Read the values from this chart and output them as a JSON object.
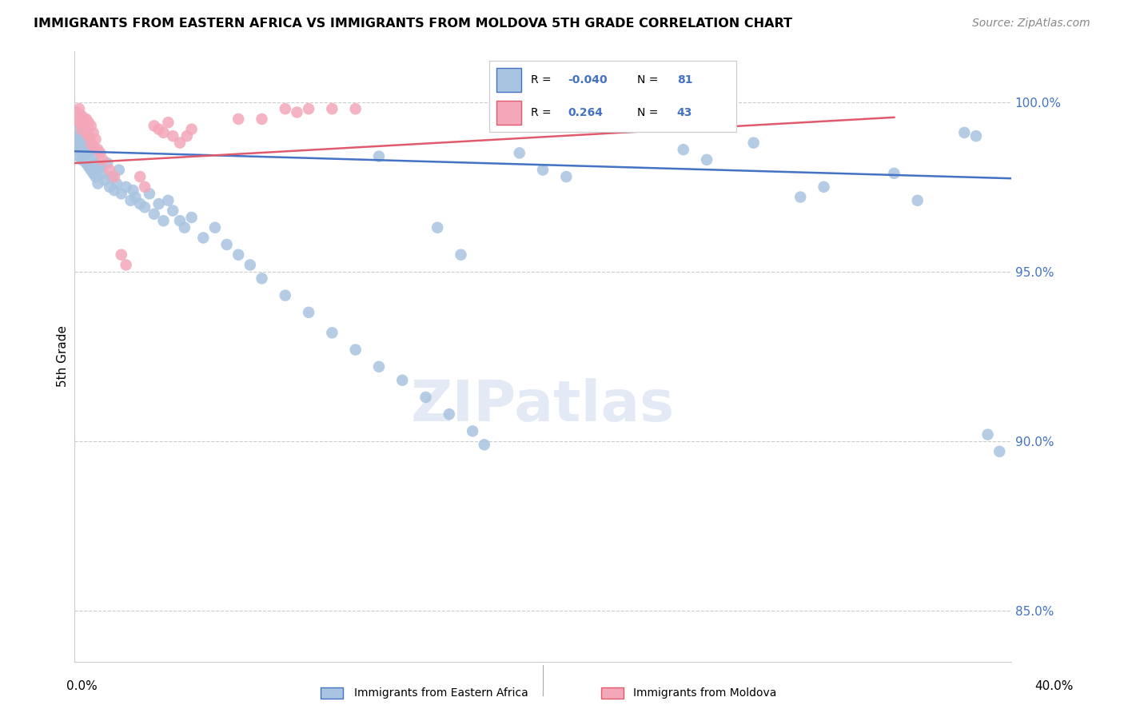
{
  "title": "IMMIGRANTS FROM EASTERN AFRICA VS IMMIGRANTS FROM MOLDOVA 5TH GRADE CORRELATION CHART",
  "source": "Source: ZipAtlas.com",
  "ylabel": "5th Grade",
  "y_ticks": [
    85.0,
    90.0,
    95.0,
    100.0
  ],
  "y_tick_labels": [
    "85.0%",
    "90.0%",
    "95.0%",
    "100.0%"
  ],
  "legend_label1": "Immigrants from Eastern Africa",
  "legend_label2": "Immigrants from Moldova",
  "R1": -0.04,
  "N1": 81,
  "R2": 0.264,
  "N2": 43,
  "color1": "#a8c4e0",
  "color2": "#f4a7b9",
  "line_color1": "#4472c4",
  "line_color2": "#e05a6e",
  "xlim": [
    0,
    0.4
  ],
  "ylim": [
    83.5,
    101.5
  ],
  "blue_line": [
    [
      0.0,
      98.55
    ],
    [
      0.4,
      97.75
    ]
  ],
  "pink_line": [
    [
      0.0,
      98.2
    ],
    [
      0.35,
      99.55
    ]
  ],
  "blue_x": [
    0.001,
    0.001,
    0.001,
    0.002,
    0.002,
    0.002,
    0.003,
    0.003,
    0.003,
    0.004,
    0.004,
    0.005,
    0.005,
    0.006,
    0.006,
    0.007,
    0.007,
    0.008,
    0.008,
    0.009,
    0.009,
    0.01,
    0.01,
    0.011,
    0.012,
    0.013,
    0.014,
    0.015,
    0.016,
    0.017,
    0.018,
    0.019,
    0.02,
    0.022,
    0.024,
    0.025,
    0.026,
    0.028,
    0.03,
    0.032,
    0.034,
    0.036,
    0.038,
    0.04,
    0.042,
    0.045,
    0.047,
    0.05,
    0.055,
    0.06,
    0.065,
    0.07,
    0.075,
    0.08,
    0.09,
    0.1,
    0.11,
    0.12,
    0.13,
    0.14,
    0.15,
    0.16,
    0.17,
    0.175,
    0.19,
    0.2,
    0.21,
    0.26,
    0.27,
    0.29,
    0.31,
    0.32,
    0.35,
    0.36,
    0.38,
    0.385,
    0.39,
    0.395,
    0.155,
    0.165,
    0.13
  ],
  "blue_y": [
    98.9,
    99.2,
    98.6,
    99.0,
    98.7,
    98.4,
    99.1,
    98.8,
    98.3,
    98.9,
    98.5,
    98.7,
    98.2,
    98.5,
    98.1,
    98.6,
    98.0,
    98.4,
    97.9,
    98.2,
    97.8,
    98.0,
    97.6,
    98.1,
    97.9,
    97.7,
    98.2,
    97.5,
    97.8,
    97.4,
    97.6,
    98.0,
    97.3,
    97.5,
    97.1,
    97.4,
    97.2,
    97.0,
    96.9,
    97.3,
    96.7,
    97.0,
    96.5,
    97.1,
    96.8,
    96.5,
    96.3,
    96.6,
    96.0,
    96.3,
    95.8,
    95.5,
    95.2,
    94.8,
    94.3,
    93.8,
    93.2,
    92.7,
    92.2,
    91.8,
    91.3,
    90.8,
    90.3,
    89.9,
    98.5,
    98.0,
    97.8,
    98.6,
    98.3,
    98.8,
    97.2,
    97.5,
    97.9,
    97.1,
    99.1,
    99.0,
    90.2,
    89.7,
    96.3,
    95.5,
    98.4
  ],
  "pink_x": [
    0.001,
    0.001,
    0.002,
    0.002,
    0.002,
    0.003,
    0.003,
    0.003,
    0.004,
    0.004,
    0.005,
    0.005,
    0.006,
    0.006,
    0.007,
    0.007,
    0.008,
    0.008,
    0.009,
    0.01,
    0.011,
    0.012,
    0.015,
    0.017,
    0.02,
    0.022,
    0.028,
    0.03,
    0.034,
    0.036,
    0.038,
    0.04,
    0.042,
    0.045,
    0.048,
    0.05,
    0.07,
    0.08,
    0.09,
    0.095,
    0.1,
    0.11,
    0.12
  ],
  "pink_y": [
    99.7,
    99.5,
    99.8,
    99.6,
    99.4,
    99.6,
    99.4,
    99.2,
    99.5,
    99.3,
    99.5,
    99.1,
    99.4,
    99.0,
    99.3,
    98.8,
    99.1,
    98.7,
    98.9,
    98.6,
    98.5,
    98.3,
    98.0,
    97.8,
    95.5,
    95.2,
    97.8,
    97.5,
    99.3,
    99.2,
    99.1,
    99.4,
    99.0,
    98.8,
    99.0,
    99.2,
    99.5,
    99.5,
    99.8,
    99.7,
    99.8,
    99.8,
    99.8
  ]
}
